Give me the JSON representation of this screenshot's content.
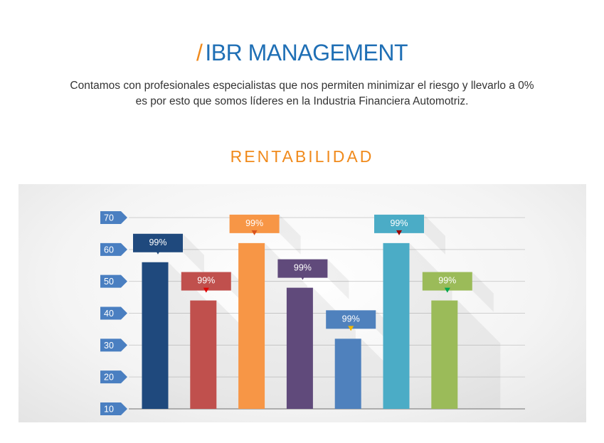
{
  "header": {
    "slash": "/",
    "title": "IBR MANAGEMENT",
    "description_line1": "Contamos con profesionales especialistas que nos permiten minimizar el riesgo y llevarlo a 0%",
    "description_line2": "es por esto que somos líderes en la Industria Financiera Automotriz.",
    "section_title": "RENTABILIDAD"
  },
  "colors": {
    "title": "#1f6fb5",
    "accent": "#f08a1c",
    "axis_tag": "#4a7fc1"
  },
  "chart_data": {
    "type": "bar",
    "categories": [
      "",
      "",
      "",
      "",
      "",
      "",
      ""
    ],
    "values": [
      56,
      44,
      62,
      48,
      32,
      62,
      44
    ],
    "labels": [
      "99%",
      "99%",
      "99%",
      "99%",
      "99%",
      "99%",
      "99%"
    ],
    "colors": [
      "#1f497d",
      "#c0504d",
      "#f79646",
      "#604a7b",
      "#4f81bd",
      "#4bacc6",
      "#9bbb59"
    ],
    "label_box_colors": [
      "#1f497d",
      "#c0504d",
      "#f79646",
      "#604a7b",
      "#4f81bd",
      "#4bacc6",
      "#9bbb59"
    ],
    "marker_colors": [
      "#1f497d",
      "#e00000",
      "#d9541e",
      "#604a7b",
      "#f2b800",
      "#9b0000",
      "#00a650"
    ],
    "yticks": [
      10,
      20,
      30,
      40,
      50,
      60,
      70
    ],
    "ylim": [
      10,
      70
    ],
    "grid": true
  }
}
